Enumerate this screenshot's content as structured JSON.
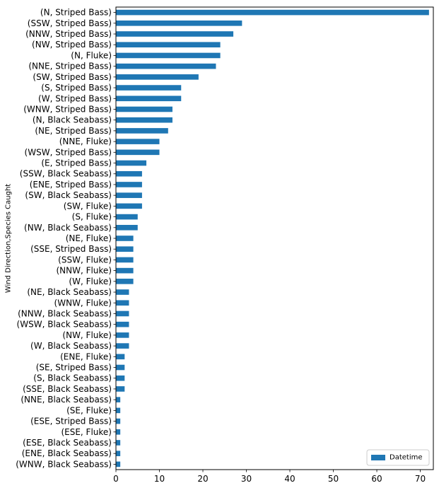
{
  "chart_data": {
    "type": "bar",
    "orientation": "horizontal",
    "ylabel": "Wind Direction,Species Caught",
    "xlim": [
      0,
      73
    ],
    "xticks": [
      0,
      10,
      20,
      30,
      40,
      50,
      60,
      70
    ],
    "grid": false,
    "legend_position": "bottom-right",
    "bar_color": "#1f77b4",
    "series": [
      {
        "name": "Datetime",
        "categories": [
          "(N, Striped Bass)",
          "(SSW, Striped Bass)",
          "(NNW, Striped Bass)",
          "(NW, Striped Bass)",
          "(N, Fluke)",
          "(NNE, Striped Bass)",
          "(SW, Striped Bass)",
          "(S, Striped Bass)",
          "(W, Striped Bass)",
          "(WNW, Striped Bass)",
          "(N, Black Seabass)",
          "(NE, Striped Bass)",
          "(NNE, Fluke)",
          "(WSW, Striped Bass)",
          "(E, Striped Bass)",
          "(SSW, Black Seabass)",
          "(ENE, Striped Bass)",
          "(SW, Black Seabass)",
          "(SW, Fluke)",
          "(S, Fluke)",
          "(NW, Black Seabass)",
          "(NE, Fluke)",
          "(SSE, Striped Bass)",
          "(SSW, Fluke)",
          "(NNW, Fluke)",
          "(W, Fluke)",
          "(NE, Black Seabass)",
          "(WNW, Fluke)",
          "(NNW, Black Seabass)",
          "(WSW, Black Seabass)",
          "(NW, Fluke)",
          "(W, Black Seabass)",
          "(ENE, Fluke)",
          "(SE, Striped Bass)",
          "(S, Black Seabass)",
          "(SSE, Black Seabass)",
          "(NNE, Black Seabass)",
          "(SE, Fluke)",
          "(ESE, Striped Bass)",
          "(ESE, Fluke)",
          "(ESE, Black Seabass)",
          "(ENE, Black Seabass)",
          "(WNW, Black Seabass)"
        ],
        "values": [
          72,
          29,
          27,
          24,
          24,
          23,
          19,
          15,
          15,
          13,
          13,
          12,
          10,
          10,
          7,
          6,
          6,
          6,
          6,
          5,
          5,
          4,
          4,
          4,
          4,
          4,
          3,
          3,
          3,
          3,
          3,
          3,
          2,
          2,
          2,
          2,
          1,
          1,
          1,
          1,
          1,
          1,
          1
        ]
      }
    ]
  }
}
